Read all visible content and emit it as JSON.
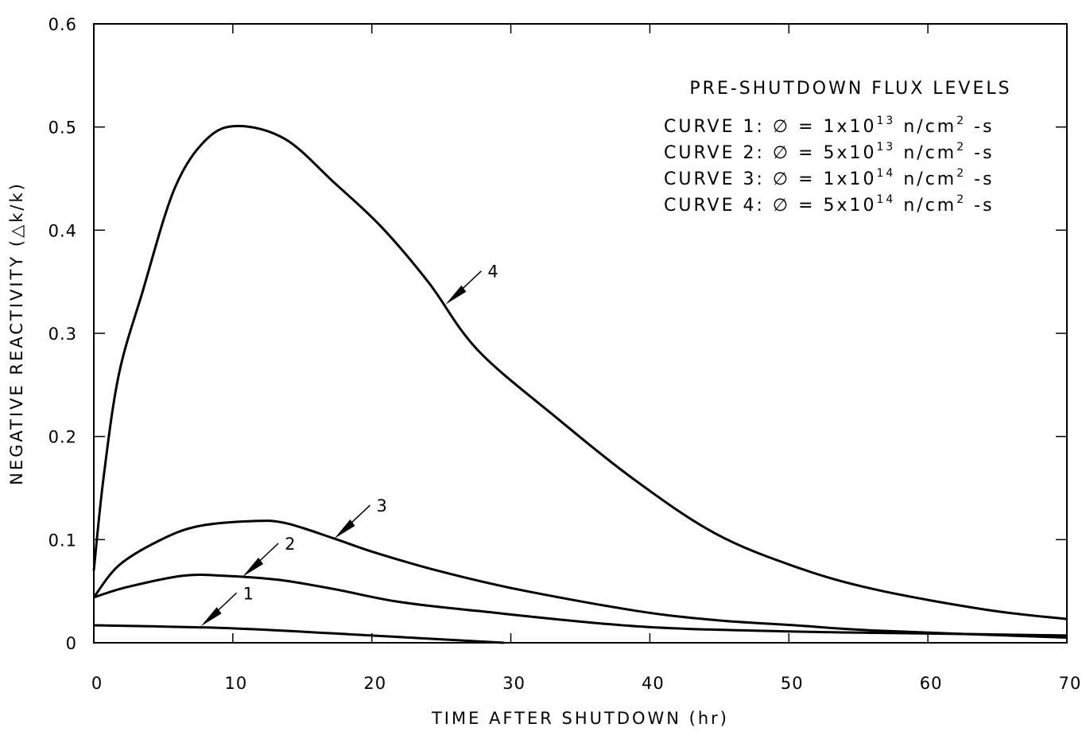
{
  "chart_data": {
    "type": "line",
    "title": "",
    "xlabel": "TIME AFTER SHUTDOWN (hr)",
    "ylabel": "NEGATIVE REACTIVITY (△k/k)",
    "xlim": [
      0,
      70
    ],
    "ylim": [
      0,
      0.6
    ],
    "xticks": [
      "0",
      "10",
      "20",
      "30",
      "40",
      "50",
      "60",
      "70"
    ],
    "yticks": [
      "0",
      "0.1",
      "0.2",
      "0.3",
      "0.4",
      "0.5",
      "0.6"
    ],
    "grid": false,
    "legend": {
      "title": "PRE-SHUTDOWN FLUX LEVELS",
      "placement": "top-right",
      "entries": [
        {
          "prefix": "CURVE 1:",
          "phi": "∅ =",
          "mant": "1x10",
          "exp": "13",
          "unit": "n/cm",
          "unit_exp": "2",
          "tail": "-s"
        },
        {
          "prefix": "CURVE 2:",
          "phi": "∅ =",
          "mant": "5x10",
          "exp": "13",
          "unit": "n/cm",
          "unit_exp": "2",
          "tail": "-s"
        },
        {
          "prefix": "CURVE 3:",
          "phi": "∅ =",
          "mant": "1x10",
          "exp": "14",
          "unit": "n/cm",
          "unit_exp": "2",
          "tail": "-s"
        },
        {
          "prefix": "CURVE 4:",
          "phi": "∅ =",
          "mant": "5x10",
          "exp": "14",
          "unit": "n/cm",
          "unit_exp": "2",
          "tail": "-s"
        }
      ]
    },
    "series": [
      {
        "name": "1",
        "x": [
          0,
          10,
          20,
          29.5
        ],
        "y": [
          0.017,
          0.014,
          0.007,
          0.0
        ],
        "arrow_at": [
          7.7,
          0.016
        ]
      },
      {
        "name": "2",
        "x": [
          0,
          2.4,
          6.4,
          9.3,
          13.3,
          17.3,
          21.8,
          27.5,
          39,
          50,
          60,
          70
        ],
        "y": [
          0.044,
          0.054,
          0.065,
          0.065,
          0.061,
          0.052,
          0.04,
          0.031,
          0.016,
          0.011,
          0.009,
          0.007
        ],
        "arrow_at": [
          10.7,
          0.064
        ]
      },
      {
        "name": "3",
        "x": [
          0,
          1.8,
          4.7,
          7.5,
          11.5,
          13.8,
          17.3,
          20.1,
          24.7,
          30.4,
          39,
          44.7,
          50.4,
          56,
          70
        ],
        "y": [
          0.044,
          0.075,
          0.099,
          0.113,
          0.118,
          0.116,
          0.101,
          0.088,
          0.07,
          0.052,
          0.031,
          0.022,
          0.017,
          0.012,
          0.005
        ],
        "arrow_at": [
          17.3,
          0.101
        ]
      },
      {
        "name": "4",
        "x": [
          0,
          0.7,
          1.8,
          3.5,
          5.8,
          8.1,
          10.4,
          13.8,
          17.3,
          20.7,
          24.1,
          27.6,
          33.3,
          39,
          44.7,
          50.4,
          56.1,
          64.2,
          70
        ],
        "y": [
          0.07,
          0.16,
          0.26,
          0.34,
          0.44,
          0.488,
          0.501,
          0.488,
          0.446,
          0.403,
          0.349,
          0.284,
          0.218,
          0.157,
          0.106,
          0.074,
          0.052,
          0.032,
          0.023
        ],
        "arrow_at": [
          25.3,
          0.328
        ]
      }
    ]
  }
}
